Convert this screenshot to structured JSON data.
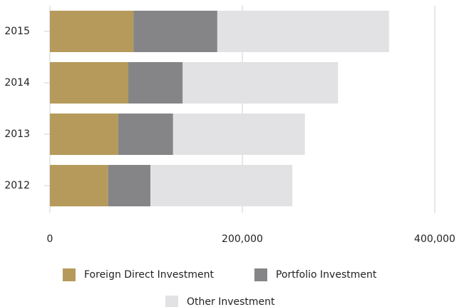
{
  "chart_data": {
    "type": "stacked-bar-horizontal",
    "categories": [
      "2015",
      "2014",
      "2013",
      "2012"
    ],
    "series": [
      {
        "name": "Foreign Direct Investment",
        "color": "#b59a5b",
        "values": [
          87000,
          81500,
          71000,
          60500
        ]
      },
      {
        "name": "Portfolio Investment",
        "color": "#858588",
        "values": [
          87000,
          56500,
          57000,
          44000
        ]
      },
      {
        "name": "Other Investment",
        "color": "#e2e2e4",
        "values": [
          178500,
          161500,
          137000,
          147500
        ]
      }
    ],
    "xlim": [
      0,
      400000
    ],
    "xticks": [
      0,
      {
        "value": 200000,
        "label": "200,000"
      },
      {
        "value": 400000,
        "label": "400,000"
      }
    ],
    "grid": true
  }
}
